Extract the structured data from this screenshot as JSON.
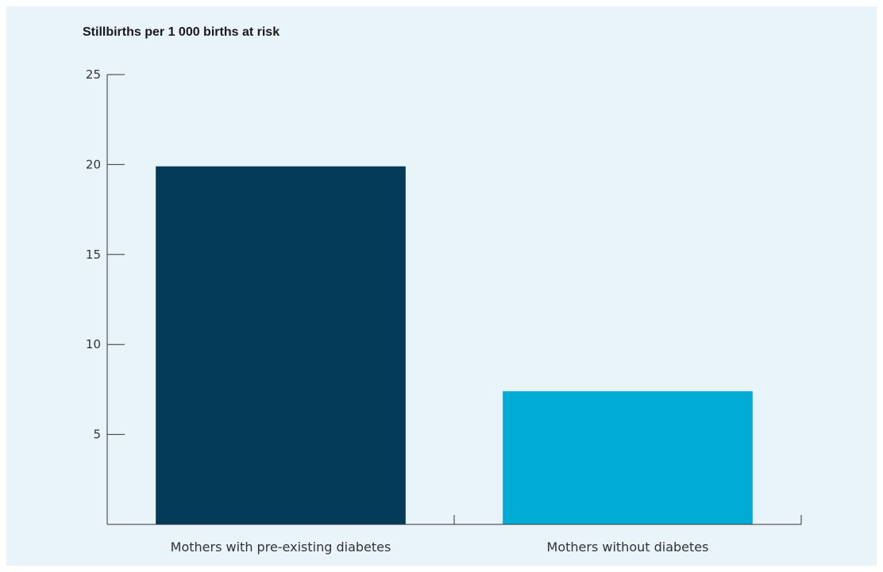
{
  "chart_data": {
    "type": "bar",
    "title": "Stillbirths per 1 000 births at risk",
    "categories": [
      "Mothers with pre-existing diabetes",
      "Mothers without diabetes"
    ],
    "values": [
      19.9,
      7.4
    ],
    "colors": [
      "#033a57",
      "#00acd6"
    ],
    "ylim": [
      0,
      25
    ],
    "yticks": [
      5,
      10,
      15,
      20,
      25
    ],
    "xlabel": "",
    "ylabel": "",
    "grid": false
  }
}
